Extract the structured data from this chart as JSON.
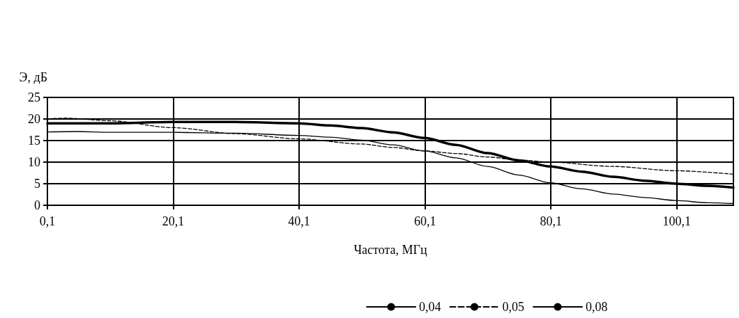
{
  "chart_data": {
    "type": "line",
    "ylabel": "Э, дБ",
    "xlabel": "Частота, МГц",
    "xlim": [
      0.1,
      109.1
    ],
    "xticks": [
      {
        "value": 0.1,
        "label": "0,1"
      },
      {
        "value": 20.1,
        "label": "20,1"
      },
      {
        "value": 40.1,
        "label": "40,1"
      },
      {
        "value": 60.1,
        "label": "60,1"
      },
      {
        "value": 80.1,
        "label": "80,1"
      },
      {
        "value": 100.1,
        "label": "100,1"
      }
    ],
    "ylim": [
      0,
      25
    ],
    "yticks": [
      0,
      5,
      10,
      15,
      20,
      25
    ],
    "grid": true,
    "legend": "bottom",
    "marker": "none",
    "series": [
      {
        "name": "0,04",
        "color": "#000000",
        "line_style": "solid",
        "x": [
          0.1,
          5,
          10,
          20,
          30,
          40,
          45,
          50,
          55,
          60,
          65,
          70,
          75,
          80,
          85,
          90,
          95,
          100,
          105,
          109.1
        ],
        "values": [
          17,
          17.1,
          16.9,
          16.9,
          16.7,
          16.2,
          15.8,
          15.1,
          14,
          12.6,
          11,
          9,
          7,
          5.2,
          3.8,
          2.6,
          1.8,
          1.1,
          0.6,
          0.4
        ]
      },
      {
        "name": "0,05",
        "color": "#000000",
        "line_style": "dashed",
        "x": [
          0.1,
          3,
          10,
          20,
          30,
          40,
          50,
          55,
          60,
          65,
          70,
          75,
          80,
          90,
          100,
          109.1
        ],
        "values": [
          20,
          20.2,
          19.6,
          18,
          16.6,
          15.4,
          14.2,
          13.4,
          12.6,
          12,
          11.2,
          10.5,
          10,
          9,
          8,
          7.2
        ]
      },
      {
        "name": "0,08",
        "color": "#000000",
        "line_style": "solid",
        "x": [
          0.1,
          10,
          20,
          30,
          40,
          45,
          50,
          55,
          60,
          65,
          70,
          75,
          80,
          85,
          90,
          95,
          100,
          105,
          109.1
        ],
        "values": [
          19,
          19,
          19.3,
          19.3,
          19,
          18.5,
          17.9,
          16.9,
          15.6,
          14,
          12.1,
          10.4,
          9,
          7.8,
          6.6,
          5.7,
          5,
          4.5,
          4.1
        ]
      }
    ]
  }
}
